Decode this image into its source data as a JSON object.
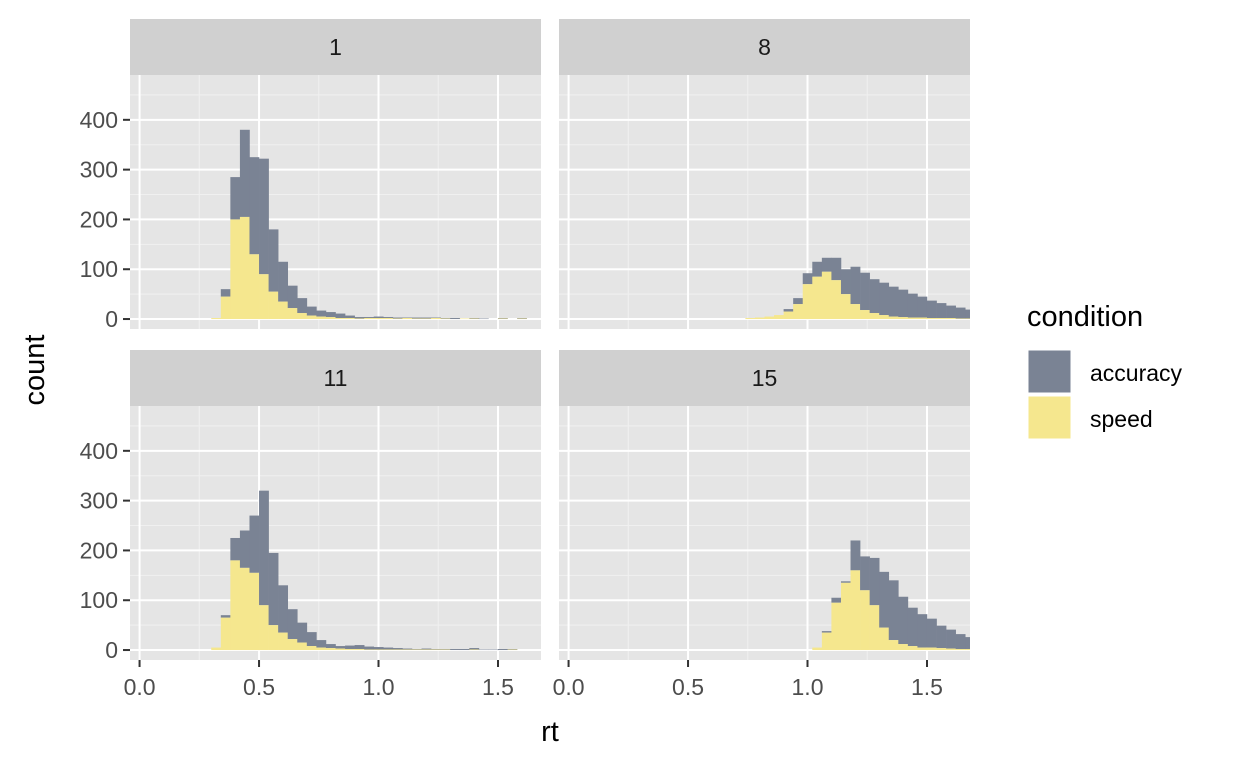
{
  "chart_data": {
    "type": "bar",
    "stacked": true,
    "xlabel": "rt",
    "ylabel": "count",
    "xlim": [
      -0.04,
      1.68
    ],
    "ylim": [
      -20,
      490
    ],
    "x_ticks": [
      0.0,
      0.5,
      1.0,
      1.5
    ],
    "x_tick_labels": [
      "0.0",
      "0.5",
      "1.0",
      "1.5"
    ],
    "y_ticks": [
      0,
      100,
      200,
      300,
      400
    ],
    "y_tick_labels": [
      "0",
      "100",
      "200",
      "300",
      "400"
    ],
    "grid": true,
    "bin_start": 0.3,
    "bin_width": 0.04,
    "legend": {
      "title": "condition",
      "position": "right",
      "entries": [
        {
          "label": "accuracy",
          "color": "#7a8394"
        },
        {
          "label": "speed",
          "color": "#f5e78e"
        }
      ]
    },
    "panels": [
      {
        "label": "1",
        "series": [
          {
            "name": "speed",
            "values": [
              2,
              45,
              200,
              205,
              130,
              90,
              55,
              35,
              22,
              12,
              7,
              5,
              4,
              2,
              2,
              1,
              2,
              2,
              2,
              1,
              2,
              1,
              1,
              2,
              1,
              0,
              1,
              1,
              0,
              0,
              1,
              0,
              1,
              0
            ]
          },
          {
            "name": "accuracy",
            "values": [
              0,
              15,
              85,
              175,
              195,
              232,
              125,
              80,
              45,
              30,
              18,
              12,
              10,
              9,
              5,
              3,
              2,
              3,
              2,
              2,
              1,
              2,
              2,
              1,
              1,
              2,
              0,
              1,
              1,
              0,
              1,
              0,
              1,
              0
            ]
          }
        ]
      },
      {
        "label": "8",
        "series": [
          {
            "name": "speed",
            "values": [
              0,
              0,
              0,
              0,
              0,
              0,
              0,
              0,
              0,
              0,
              0,
              2,
              3,
              5,
              8,
              15,
              30,
              70,
              85,
              95,
              78,
              50,
              30,
              18,
              12,
              8,
              5,
              4,
              3,
              3,
              2,
              2,
              2,
              1,
              1,
              1,
              1,
              1,
              1
            ]
          },
          {
            "name": "accuracy",
            "values": [
              0,
              0,
              0,
              0,
              0,
              0,
              0,
              0,
              0,
              0,
              0,
              0,
              0,
              0,
              0,
              5,
              12,
              22,
              30,
              28,
              45,
              50,
              75,
              75,
              68,
              65,
              60,
              55,
              48,
              42,
              35,
              30,
              25,
              22,
              18,
              12,
              15,
              8,
              6
            ]
          }
        ]
      },
      {
        "label": "11",
        "series": [
          {
            "name": "speed",
            "values": [
              5,
              65,
              180,
              165,
              155,
              90,
              50,
              35,
              22,
              15,
              8,
              5,
              4,
              3,
              2,
              2,
              1,
              1,
              1,
              1,
              1,
              1,
              1,
              1,
              1,
              0,
              0,
              1,
              0,
              0,
              0,
              1,
              0,
              0
            ]
          },
          {
            "name": "accuracy",
            "values": [
              0,
              5,
              45,
              75,
              115,
              230,
              145,
              95,
              60,
              40,
              28,
              15,
              8,
              5,
              7,
              8,
              6,
              5,
              4,
              3,
              2,
              1,
              2,
              1,
              1,
              2,
              2,
              3,
              1,
              1,
              2,
              1,
              0,
              0
            ]
          }
        ]
      },
      {
        "label": "15",
        "series": [
          {
            "name": "speed",
            "values": [
              0,
              0,
              0,
              0,
              0,
              0,
              0,
              0,
              0,
              0,
              0,
              0,
              0,
              0,
              0,
              0,
              0,
              0,
              5,
              35,
              95,
              135,
              160,
              120,
              90,
              45,
              20,
              12,
              8,
              5,
              5,
              4,
              3,
              2,
              2,
              2,
              1,
              1,
              1,
              1,
              0,
              1,
              0,
              0,
              0,
              0,
              0,
              0,
              0,
              0
            ]
          },
          {
            "name": "accuracy",
            "values": [
              0,
              0,
              0,
              0,
              0,
              0,
              0,
              0,
              0,
              0,
              0,
              0,
              0,
              0,
              0,
              0,
              0,
              0,
              0,
              3,
              10,
              3,
              60,
              68,
              95,
              112,
              120,
              95,
              77,
              67,
              58,
              45,
              38,
              30,
              24,
              20,
              18,
              15,
              12,
              10,
              9,
              8,
              7,
              6,
              5,
              4,
              3,
              2,
              2,
              1
            ]
          }
        ]
      }
    ]
  }
}
